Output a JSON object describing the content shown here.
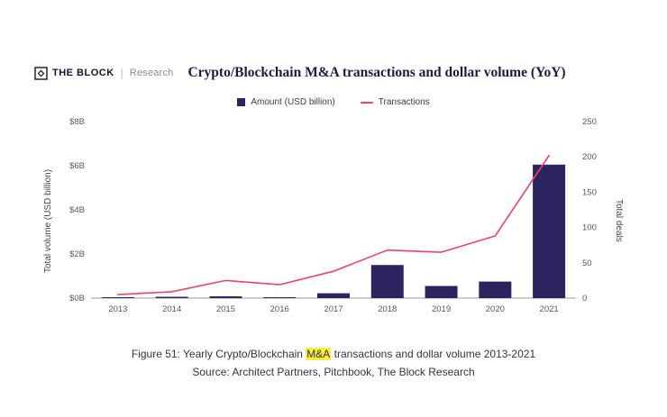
{
  "header": {
    "brand": "THE BLOCK",
    "brand_sub": "Research",
    "title": "Crypto/Blockchain M&A transactions and dollar volume (YoY)"
  },
  "legend": {
    "amount": {
      "label": "Amount (USD billion)",
      "color": "#2b2460"
    },
    "transactions": {
      "label": "Transactions",
      "color": "#ef4266"
    }
  },
  "chart_data": {
    "type": "bar",
    "subtype": "bar+line combo, dual axis",
    "title": "Crypto/Blockchain M&A transactions and dollar volume (YoY)",
    "categories": [
      "2013",
      "2014",
      "2015",
      "2016",
      "2017",
      "2018",
      "2019",
      "2020",
      "2021"
    ],
    "series": [
      {
        "name": "Amount (USD billion)",
        "type": "bar",
        "axis": "left",
        "color": "#2b2460",
        "values": [
          0.02,
          0.06,
          0.08,
          0.03,
          0.22,
          1.5,
          0.55,
          0.75,
          6.05
        ]
      },
      {
        "name": "Transactions",
        "type": "line",
        "axis": "right",
        "color": "#ef4266",
        "values": [
          5,
          9,
          25,
          19,
          38,
          68,
          65,
          88,
          202
        ]
      }
    ],
    "left_axis": {
      "label": "Total volume (USD billion)",
      "min": 0,
      "max": 8,
      "tick_labels": [
        "$0B",
        "$2B",
        "$4B",
        "$6B",
        "$8B"
      ],
      "tick_values": [
        0,
        2,
        4,
        6,
        8
      ]
    },
    "right_axis": {
      "label": "Total deals",
      "min": 0,
      "max": 250,
      "tick_labels": [
        "0",
        "50",
        "100",
        "150",
        "200",
        "250"
      ],
      "tick_values": [
        0,
        50,
        100,
        150,
        200,
        250
      ]
    },
    "grid": false,
    "legend_position": "top-center"
  },
  "caption": {
    "prefix": "Figure 51: Yearly Crypto/Blockchain ",
    "highlight": "M&A",
    "suffix": " transactions and dollar volume 2013-2021",
    "source": "Source: Architect Partners, Pitchbook, The Block Research"
  },
  "colors": {
    "bar": "#2b2460",
    "line": "#ef4266",
    "axis_text": "#55555f",
    "baseline": "#9a9aa4",
    "highlight": "#f9ee3a"
  }
}
